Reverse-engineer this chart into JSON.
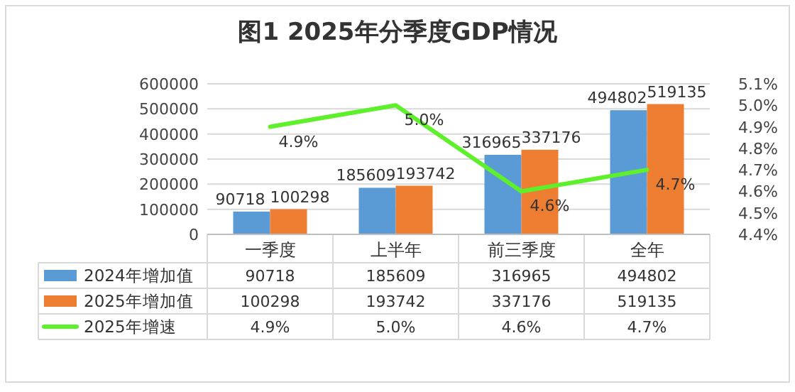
{
  "chart_data": {
    "type": "bar",
    "title": "图1 2025年分季度GDP情况",
    "categories": [
      "一季度",
      "上半年",
      "前三季度",
      "全年"
    ],
    "series": [
      {
        "name": "2024年增加值",
        "color": "#5b9bd5",
        "values": [
          90718,
          185609,
          316965,
          494802
        ],
        "value_labels": [
          "90718",
          "185609",
          "316965",
          "494802"
        ]
      },
      {
        "name": "2025年增加值",
        "color": "#ed7d31",
        "values": [
          100298,
          193742,
          337176,
          519135
        ],
        "value_labels": [
          "100298",
          "193742",
          "337176",
          "519135"
        ]
      },
      {
        "name": "2025年增速",
        "color": "#5ef02b",
        "type": "line",
        "axis": "y2",
        "values": [
          4.9,
          5.0,
          4.6,
          4.7
        ],
        "value_labels": [
          "4.9%",
          "5.0%",
          "4.6%",
          "4.7%"
        ]
      }
    ],
    "ylim": [
      0,
      600000
    ],
    "yticks": [
      0,
      100000,
      200000,
      300000,
      400000,
      500000,
      600000
    ],
    "y2lim": [
      4.4,
      5.1
    ],
    "y2ticks": [
      {
        "value": 4.4,
        "label": "4.4%"
      },
      {
        "value": 4.5,
        "label": "4.5%"
      },
      {
        "value": 4.6,
        "label": "4.6%"
      },
      {
        "value": 4.7,
        "label": "4.7%"
      },
      {
        "value": 4.8,
        "label": "4.8%"
      },
      {
        "value": 4.9,
        "label": "4.9%"
      },
      {
        "value": 5.0,
        "label": "5.0%"
      },
      {
        "value": 5.1,
        "label": "5.1%"
      }
    ],
    "grid": "y",
    "legend": "bottom"
  }
}
